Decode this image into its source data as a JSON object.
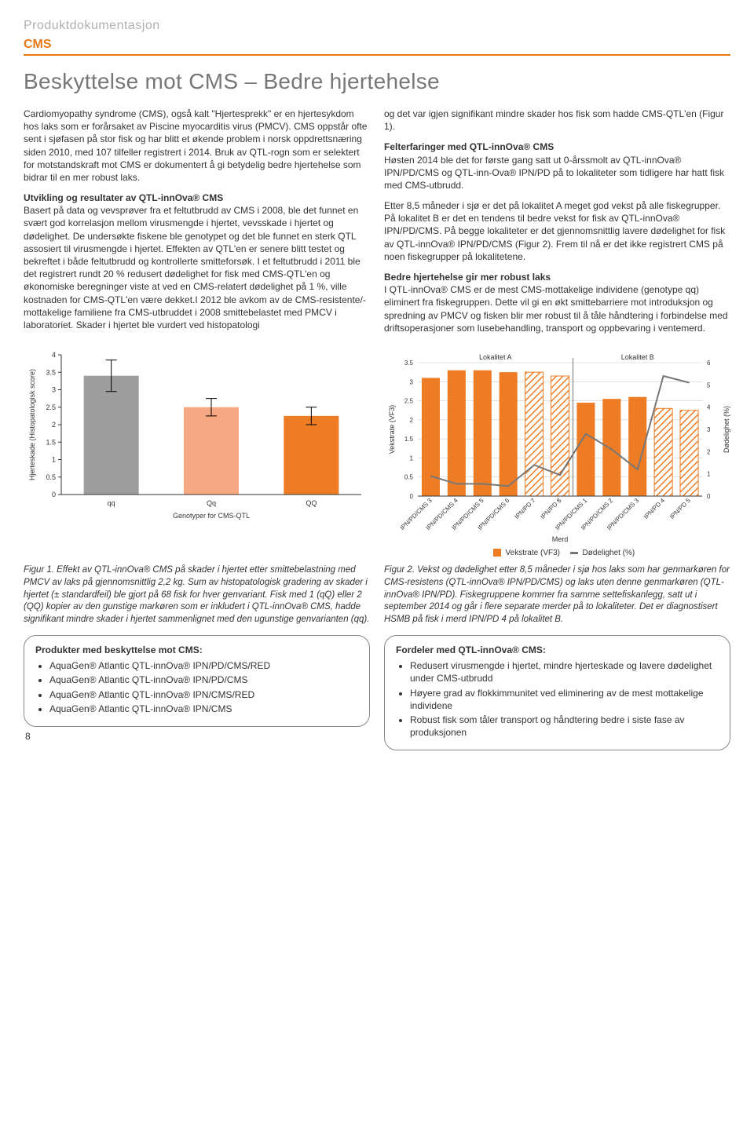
{
  "header": {
    "doc_category": "Produktdokumentasjon",
    "topic": "CMS",
    "topic_color": "#e67817",
    "rule_color": "#e67817"
  },
  "headline": "Beskyttelse mot CMS – Bedre hjertehelse",
  "left_col": {
    "p1": "Cardiomyopathy syndrome (CMS), også kalt \"Hjertesprekk\" er en hjertesykdom hos laks som er forårsaket av Piscine myocarditis virus (PMCV). CMS oppstår ofte sent i sjøfasen på stor fisk og har blitt et økende problem i norsk oppdrettsnæring siden 2010, med 107 tilfeller registrert i 2014. Bruk av QTL-rogn som er selektert for motstandskraft mot CMS er dokumentert å gi betydelig bedre hjertehelse som bidrar til en mer robust laks.",
    "sub1": "Utvikling og resultater av QTL-innOva® CMS",
    "p2": "Basert på data og vevsprøver fra et feltutbrudd av CMS i 2008, ble det funnet en svært god korrelasjon mellom virusmengde i hjertet, vevsskade i hjertet og dødelighet. De undersøkte fiskene ble genotypet og det ble funnet en sterk QTL assosiert til virusmengde i hjertet. Effekten av QTL'en er senere blitt testet og bekreftet i både feltutbrudd og kontrollerte smitteforsøk. I et feltutbrudd i 2011 ble det registrert rundt 20 % redusert dødelighet for fisk med CMS-QTL'en og økonomiske beregninger viste at ved en CMS-relatert dødelighet på 1 %, ville kostnaden for CMS-QTL'en være dekket.I 2012 ble avkom av de CMS-resistente/-mottakelige familiene fra CMS-utbruddet i 2008 smittebelastet med PMCV i laboratoriet. Skader i hjertet ble vurdert ved histopatologi"
  },
  "right_col": {
    "p1": "og det var igjen signifikant mindre skader hos fisk som hadde CMS-QTL'en (Figur 1).",
    "sub1": "Felterfaringer med QTL-innOva® CMS",
    "p2": "Høsten 2014 ble det for første gang satt ut 0-årssmolt av QTL-innOva® IPN/PD/CMS og QTL-inn-Ova® IPN/PD på to lokaliteter som tidligere har hatt fisk med CMS-utbrudd.",
    "p3": "Etter 8,5 måneder i sjø er det på lokalitet A meget god vekst på alle fiskegrupper. På lokalitet B er det en tendens til bedre vekst for fisk av QTL-innOva® IPN/PD/CMS. På begge lokaliteter er det gjennomsnittlig lavere dødelighet for fisk av QTL-innOva® IPN/PD/CMS (Figur 2). Frem til nå er det ikke registrert CMS på noen fiskegrupper på lokalitetene.",
    "sub2": "Bedre hjertehelse gir mer robust laks",
    "p4": "I QTL-innOva® CMS er de mest CMS-mottakelige individene (genotype qq) eliminert fra fiskegruppen. Dette vil gi en økt smittebarriere mot introduksjon og spredning av PMCV og fisken blir mer robust til å tåle håndtering i forbindelse med driftsoperasjoner som lusebehandling, transport og oppbevaring i ventemerd."
  },
  "fig1": {
    "type": "bar",
    "categories": [
      "qq",
      "Qq",
      "QQ"
    ],
    "values": [
      3.4,
      2.5,
      2.25
    ],
    "err": [
      0.45,
      0.25,
      0.25
    ],
    "bar_colors": [
      "#9e9e9e",
      "#f5a882",
      "#ee7c24"
    ],
    "ylim": [
      0,
      4
    ],
    "ytick_step": 0.5,
    "ylabel": "Hjerteskade (Histopatologisk score)",
    "xlabel": "Genotyper for CMS-QTL",
    "label_fontsize": 9,
    "tick_fontsize": 9,
    "axis_color": "#333333",
    "bar_width": 0.55,
    "background": "#ffffff"
  },
  "fig2": {
    "type": "bar+line",
    "categories": [
      "IPN/PD/CMS 3",
      "IPN/PD/CMS 4",
      "IPN/PD/CMS 5",
      "IPN/PD/CMS 6",
      "IPN/PD 7",
      "IPN/PD 8",
      "IPN/PD/CMS 1",
      "IPN/PD/CMS 2",
      "IPN/PD/CMS 3",
      "IPN/PD 4",
      "IPN/PD 5"
    ],
    "bar_values": [
      3.1,
      3.3,
      3.3,
      3.25,
      3.25,
      3.15,
      2.45,
      2.55,
      2.6,
      2.3,
      2.25
    ],
    "line_values": [
      0.9,
      0.55,
      0.55,
      0.45,
      1.4,
      0.95,
      2.8,
      2.1,
      1.2,
      5.4,
      5.1
    ],
    "bar_colors": {
      "cms": "#ee7c24",
      "nocms_hatch_fg": "#ee7c24",
      "nocms_hatch_bg": "#ffffff"
    },
    "hatch_indices": [
      4,
      5,
      9,
      10
    ],
    "left_ylim": [
      0,
      3.5
    ],
    "left_ytick_step": 0.5,
    "left_ylabel": "Vekstrate (VF3)",
    "right_ylim": [
      0,
      6
    ],
    "right_ytick_step": 1,
    "right_ylabel": "Dødelighet (%)",
    "xlabel": "Merd",
    "label_fontsize": 9,
    "tick_fontsize": 8,
    "axis_color": "#333333",
    "line_color": "#777777",
    "grid_color": "#cccccc",
    "split_after_index": 5,
    "group_labels": [
      "Lokalitet A",
      "Lokalitet B"
    ],
    "legend": [
      "Vekstrate (VF3)",
      "Dødelighet (%)"
    ],
    "background": "#ffffff"
  },
  "caption1": "Figur 1. Effekt av QTL-innOva® CMS på skader i hjertet etter smittebelastning med PMCV av laks på gjennomsnittlig 2,2 kg. Sum av histopatologisk gradering av skader i hjertet (± standardfeil) ble gjort på 68 fisk for hver genvariant. Fisk med 1 (qQ) eller 2 (QQ) kopier av den gunstige markøren som er inkludert i QTL-innOva® CMS, hadde signifikant mindre skader i hjertet sammenlignet med den ugunstige genvarianten (qq).",
  "caption2": "Figur 2. Vekst og dødelighet etter 8,5 måneder i sjø hos laks som har genmarkøren for CMS-resistens (QTL-innOva® IPN/PD/CMS) og laks uten denne genmarkøren (QTL-innOva® IPN/PD). Fiskegruppene kommer fra samme settefiskanlegg, satt ut i september 2014 og går i flere separate merder på to lokaliteter. Det er diagnostisert HSMB på fisk i merd IPN/PD 4 på lokalitet B.",
  "box_left": {
    "title": "Produkter med beskyttelse mot CMS:",
    "items": [
      "AquaGen® Atlantic QTL-innOva® IPN/PD/CMS/RED",
      "AquaGen® Atlantic QTL-innOva® IPN/PD/CMS",
      "AquaGen® Atlantic QTL-innOva® IPN/CMS/RED",
      "AquaGen® Atlantic QTL-innOva® IPN/CMS"
    ]
  },
  "box_right": {
    "title": "Fordeler med QTL-innOva® CMS:",
    "items": [
      "Redusert virusmengde i hjertet, mindre hjerteskade og lavere dødelighet under CMS-utbrudd",
      "Høyere grad av flokkimmunitet ved eliminering av de mest mottakelige individene",
      "Robust fisk som tåler transport og håndtering bedre i siste fase av produksjonen"
    ]
  },
  "page_number": "8"
}
